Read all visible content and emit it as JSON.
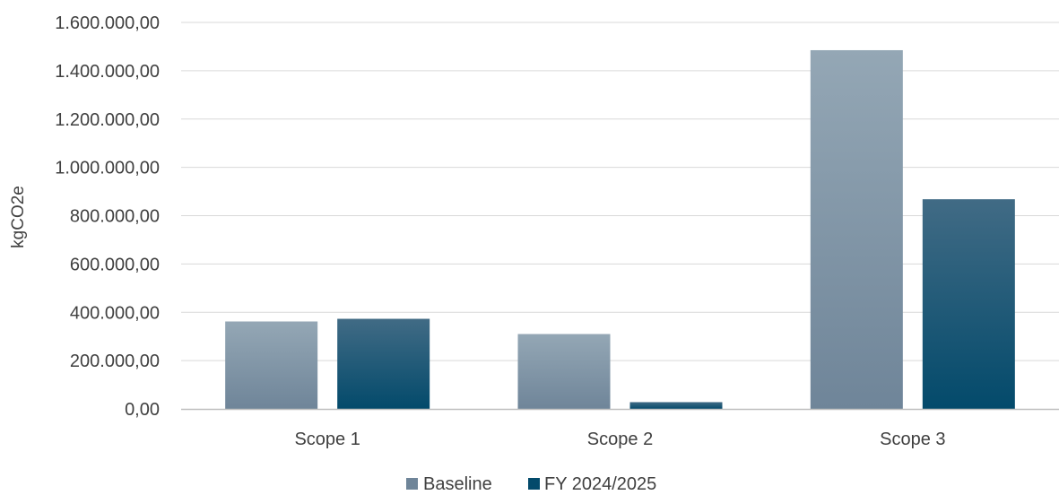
{
  "chart_data": {
    "type": "bar",
    "title": "",
    "xlabel": "",
    "ylabel": "kgCO2e",
    "ylim": [
      0,
      1600000
    ],
    "yticks": [
      "0,00",
      "200.000,00",
      "400.000,00",
      "600.000,00",
      "800.000,00",
      "1.000.000,00",
      "1.200.000,00",
      "1.400.000,00",
      "1.600.000,00"
    ],
    "categories": [
      "Scope 1",
      "Scope 2",
      "Scope 3"
    ],
    "series": [
      {
        "name": "Baseline",
        "values": [
          362000,
          310000,
          1485000
        ]
      },
      {
        "name": "FY 2024/2025",
        "values": [
          373000,
          28000,
          868000
        ]
      }
    ],
    "grid": true,
    "legend": "bottom",
    "colors": {
      "baseline_top": "#94a7b5",
      "baseline_bottom": "#6f8599",
      "fy_top": "#416b85",
      "fy_bottom": "#034a6b",
      "gridline": "#d9d9d9",
      "axis": "#bfbfbf"
    }
  }
}
